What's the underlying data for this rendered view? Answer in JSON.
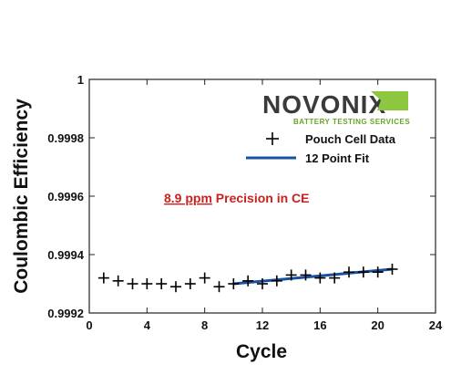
{
  "chart_data": {
    "type": "scatter",
    "xlabel": "Cycle",
    "ylabel": "Coulombic Efficiency",
    "xlim": [
      0,
      24
    ],
    "ylim": [
      0.9992,
      1.0
    ],
    "x_ticks": [
      0,
      4,
      8,
      12,
      16,
      20,
      24
    ],
    "y_ticks": [
      0.9992,
      0.9994,
      0.9996,
      0.9998,
      1
    ],
    "x_tick_labels": [
      "0",
      "4",
      "8",
      "12",
      "16",
      "20",
      "24"
    ],
    "y_tick_labels": [
      "0.9992",
      "0.9994",
      "0.9996",
      "0.9998",
      "1"
    ],
    "series": [
      {
        "name": "Pouch Cell Data",
        "marker": "+",
        "color": "#000000",
        "x": [
          1,
          2,
          3,
          4,
          5,
          6,
          7,
          8,
          9,
          10,
          11,
          12,
          13,
          14,
          15,
          16,
          17,
          18,
          19,
          20,
          21
        ],
        "y": [
          0.99932,
          0.99931,
          0.9993,
          0.9993,
          0.9993,
          0.99929,
          0.9993,
          0.99932,
          0.99929,
          0.9993,
          0.99931,
          0.9993,
          0.99931,
          0.99933,
          0.99933,
          0.99932,
          0.99932,
          0.99934,
          0.99934,
          0.99934,
          0.99935
        ]
      },
      {
        "name": "12 Point Fit",
        "type": "line",
        "color": "#1a4fa0",
        "x": [
          10,
          21
        ],
        "y": [
          0.9993,
          0.99935
        ]
      }
    ],
    "legend_position": "top-right",
    "annotation": {
      "underlined": "8.9 ppm",
      "rest": " Precision in CE",
      "color": "#cc2020"
    },
    "logo": {
      "wordmark": "NOVONIX",
      "tagline": "BATTERY TESTING SERVICES",
      "dark_color": "#3a3a3a",
      "accent_color": "#8dc63f"
    }
  }
}
